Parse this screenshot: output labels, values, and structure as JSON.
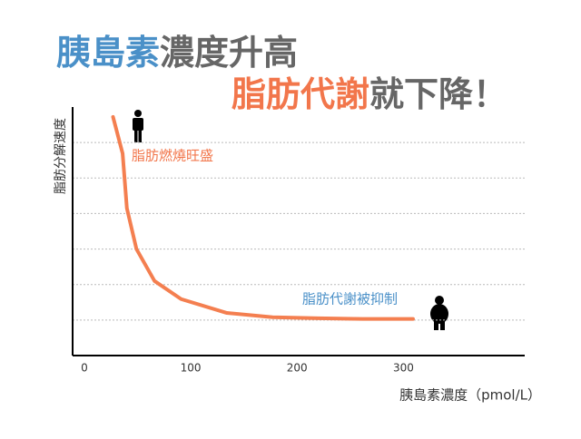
{
  "chart_data": {
    "type": "line",
    "title_lines": [
      [
        {
          "text": "胰島素",
          "color": "#4a90c8"
        },
        {
          "text": "濃度升高",
          "color": "#666666"
        }
      ],
      [
        {
          "text": "脂肪代謝",
          "color": "#f2764b"
        },
        {
          "text": "就下降！",
          "color": "#666666"
        }
      ]
    ],
    "x_label": "胰島素濃度（pmol/L）",
    "y_label": "脂肪分解速度",
    "annotations": [
      {
        "text": "脂肪燃燒旺盛",
        "color": "#f2764b"
      },
      {
        "text": "脂肪代謝被抑制",
        "color": "#4a90c8"
      }
    ],
    "series": [
      {
        "color": "#f47f50",
        "x": [
          27,
          36,
          40,
          49,
          66,
          91,
          134,
          177,
          220,
          262,
          309
        ],
        "values": [
          6.72,
          5.69,
          4.15,
          3.0,
          2.1,
          1.59,
          1.2,
          1.08,
          1.05,
          1.03,
          1.03
        ]
      }
    ],
    "xlim": [
      -11,
      414
    ],
    "xticks": [
      0,
      100,
      200,
      300
    ],
    "ylim": [
      0,
      7
    ],
    "yticks": [
      1,
      2,
      3,
      4,
      5,
      6
    ],
    "grid": true
  }
}
